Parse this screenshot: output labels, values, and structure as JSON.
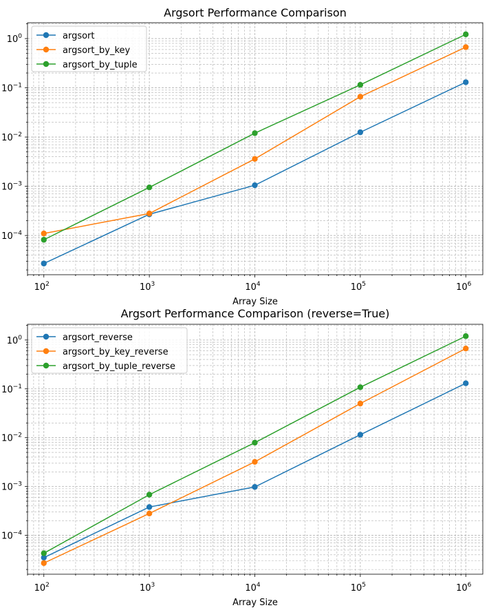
{
  "colors": {
    "series": [
      "#1f77b4",
      "#ff7f0e",
      "#2ca02c"
    ],
    "grid": "#b0b0b0",
    "axis": "#000000",
    "legend_border": "#cccccc",
    "background": "#ffffff"
  },
  "chart_data": [
    {
      "type": "line",
      "title": "Argsort Performance Comparison",
      "xlabel": "Array Size",
      "ylabel": "",
      "xscale": "log",
      "yscale": "log",
      "xlim": [
        70,
        1450000
      ],
      "ylim": [
        1.6e-05,
        2.1
      ],
      "grid": true,
      "legend_position": "top-left",
      "x": [
        100,
        1000,
        10000,
        100000,
        1000000
      ],
      "xticks": [
        {
          "base": "10",
          "exp": "2",
          "value": 100
        },
        {
          "base": "10",
          "exp": "3",
          "value": 1000
        },
        {
          "base": "10",
          "exp": "4",
          "value": 10000
        },
        {
          "base": "10",
          "exp": "5",
          "value": 100000
        },
        {
          "base": "10",
          "exp": "6",
          "value": 1000000
        }
      ],
      "yticks": [
        {
          "base": "10",
          "exp": "−4",
          "value": 0.0001
        },
        {
          "base": "10",
          "exp": "−3",
          "value": 0.001
        },
        {
          "base": "10",
          "exp": "−2",
          "value": 0.01
        },
        {
          "base": "10",
          "exp": "−1",
          "value": 0.1
        },
        {
          "base": "10",
          "exp": "0",
          "value": 1
        }
      ],
      "series": [
        {
          "name": "argsort",
          "values": [
            2.7e-05,
            0.00027,
            0.00105,
            0.0125,
            0.13
          ]
        },
        {
          "name": "argsort_by_key",
          "values": [
            0.00011,
            0.00028,
            0.0036,
            0.066,
            0.67
          ]
        },
        {
          "name": "argsort_by_tuple",
          "values": [
            8.2e-05,
            0.00095,
            0.012,
            0.115,
            1.22
          ]
        }
      ]
    },
    {
      "type": "line",
      "title": "Argsort Performance Comparison (reverse=True)",
      "xlabel": "Array Size",
      "ylabel": "",
      "xscale": "log",
      "yscale": "log",
      "xlim": [
        70,
        1450000
      ],
      "ylim": [
        1.6e-05,
        2.1
      ],
      "grid": true,
      "legend_position": "top-left",
      "x": [
        100,
        1000,
        10000,
        100000,
        1000000
      ],
      "xticks": [
        {
          "base": "10",
          "exp": "2",
          "value": 100
        },
        {
          "base": "10",
          "exp": "3",
          "value": 1000
        },
        {
          "base": "10",
          "exp": "4",
          "value": 10000
        },
        {
          "base": "10",
          "exp": "5",
          "value": 100000
        },
        {
          "base": "10",
          "exp": "6",
          "value": 1000000
        }
      ],
      "yticks": [
        {
          "base": "10",
          "exp": "−4",
          "value": 0.0001
        },
        {
          "base": "10",
          "exp": "−3",
          "value": 0.001
        },
        {
          "base": "10",
          "exp": "−2",
          "value": 0.01
        },
        {
          "base": "10",
          "exp": "−1",
          "value": 0.1
        },
        {
          "base": "10",
          "exp": "0",
          "value": 1
        }
      ],
      "series": [
        {
          "name": "argsort_reverse",
          "values": [
            3.5e-05,
            0.00038,
            0.00098,
            0.0115,
            0.13
          ]
        },
        {
          "name": "argsort_by_key_reverse",
          "values": [
            2.7e-05,
            0.00028,
            0.0032,
            0.05,
            0.67
          ]
        },
        {
          "name": "argsort_by_tuple_reverse",
          "values": [
            4.3e-05,
            0.00068,
            0.0079,
            0.108,
            1.2
          ]
        }
      ]
    }
  ]
}
